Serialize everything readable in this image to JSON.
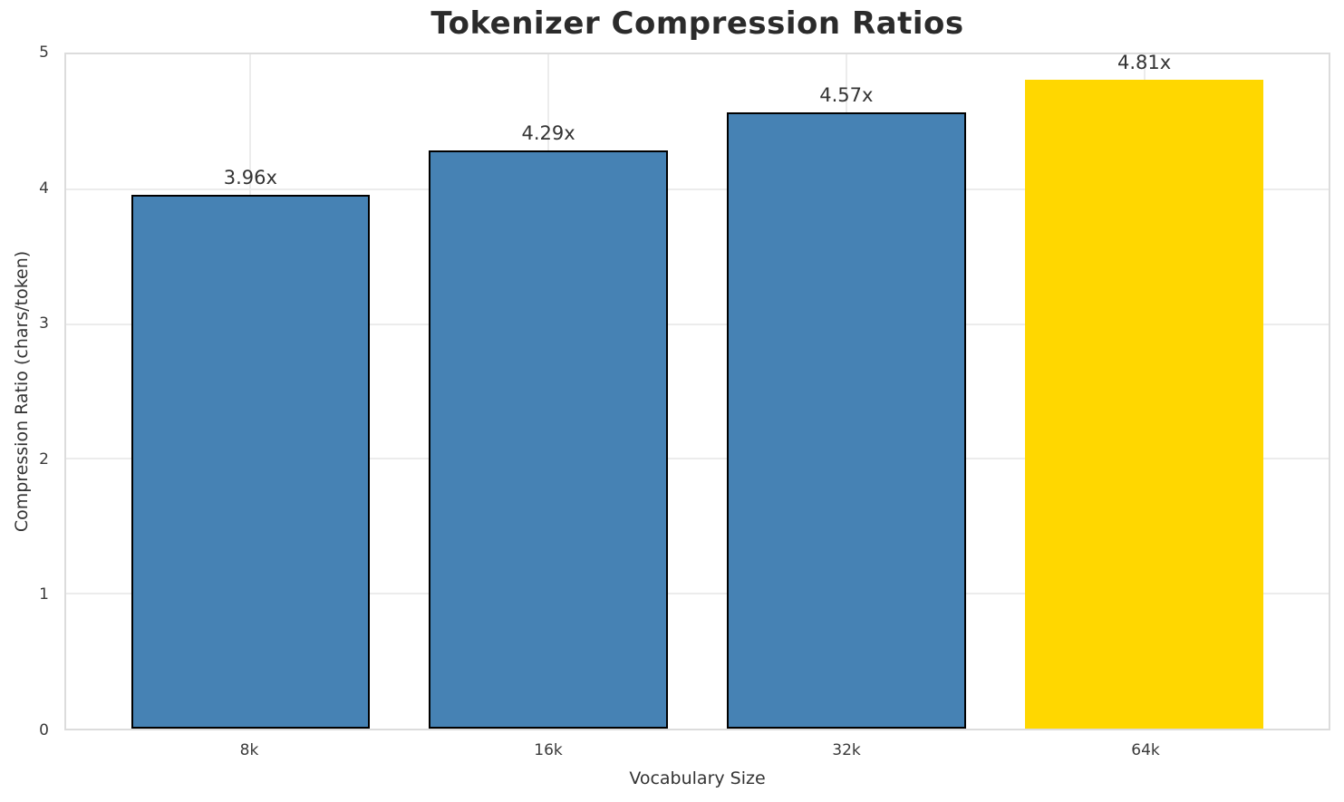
{
  "chart_data": {
    "type": "bar",
    "title": "Tokenizer Compression Ratios",
    "xlabel": "Vocabulary Size",
    "ylabel": "Compression Ratio (chars/token)",
    "categories": [
      "8k",
      "16k",
      "32k",
      "64k"
    ],
    "values": [
      3.96,
      4.29,
      4.57,
      4.81
    ],
    "bar_labels": [
      "3.96x",
      "4.29x",
      "4.57x",
      "4.81x"
    ],
    "ylim": [
      0,
      5
    ],
    "yticks": [
      0,
      1,
      2,
      3,
      4,
      5
    ],
    "ytick_labels": [
      "0",
      "1",
      "2",
      "3",
      "4",
      "5"
    ],
    "grid": true,
    "legend_position": "none",
    "bar_colors": [
      "#4682B4",
      "#4682B4",
      "#4682B4",
      "#FFD700"
    ],
    "bar_edge_colors": [
      "#000000",
      "#000000",
      "#000000",
      "none"
    ],
    "highlight_index": 3,
    "colors": {
      "base_bar": "#4682B4",
      "highlight_bar": "#FFD700",
      "bar_edge": "#000000",
      "grid": "#ececec",
      "spine": "#dcdcdc",
      "text": "#333333",
      "title": "#2b2b2b"
    }
  }
}
